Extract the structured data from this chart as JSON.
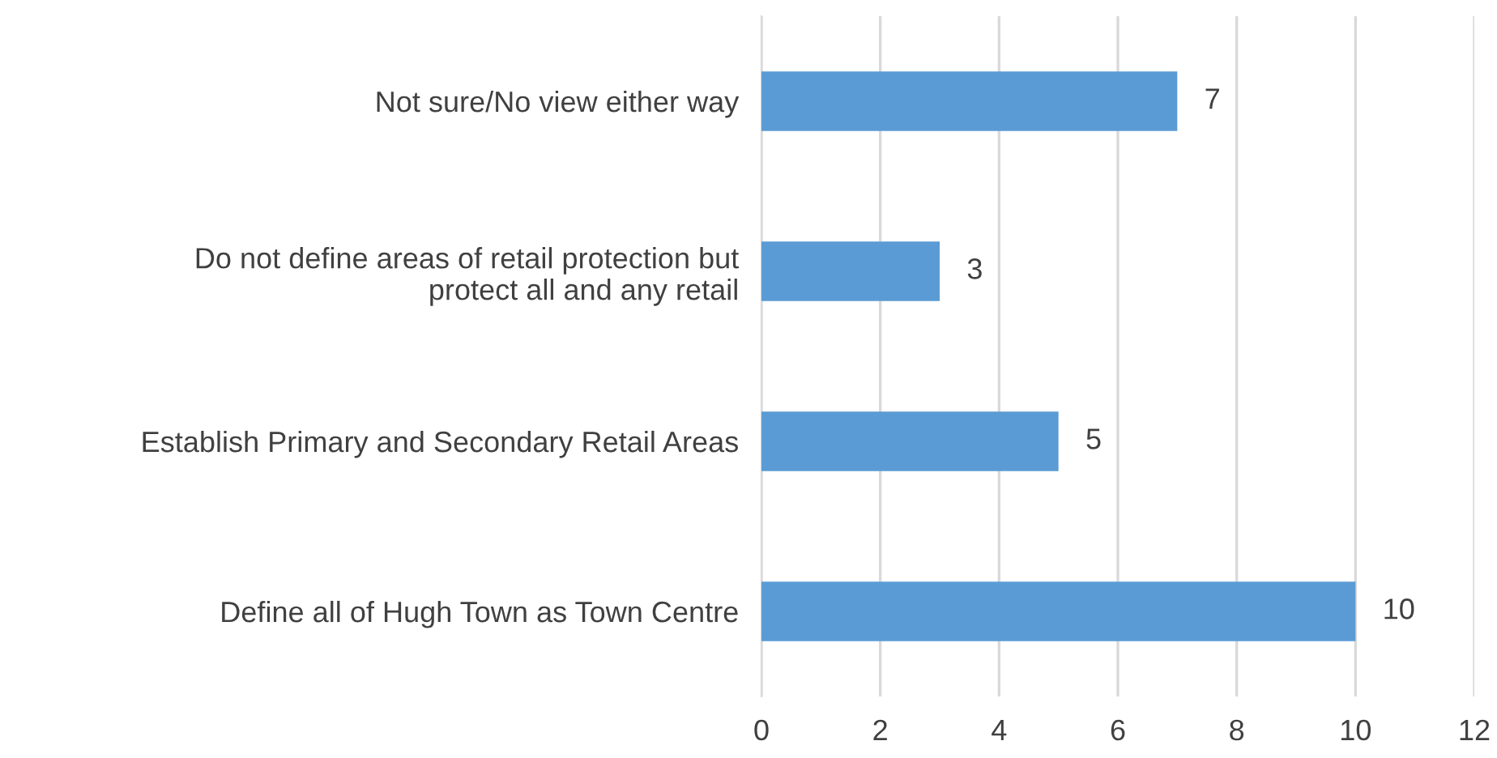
{
  "chart_data": {
    "type": "bar",
    "orientation": "horizontal",
    "categories": [
      "Not sure/No view either way",
      "Do not define areas of retail protection but\nprotect all and any retail",
      "Establish Primary and Secondary Retail Areas",
      "Define all of Hugh Town as Town Centre"
    ],
    "values": [
      7,
      3,
      5,
      10
    ],
    "color": "#5b9bd5",
    "xlim": [
      0,
      12
    ],
    "xticks": [
      0,
      2,
      4,
      6,
      8,
      10,
      12
    ],
    "grid": "x",
    "data_labels": true
  }
}
